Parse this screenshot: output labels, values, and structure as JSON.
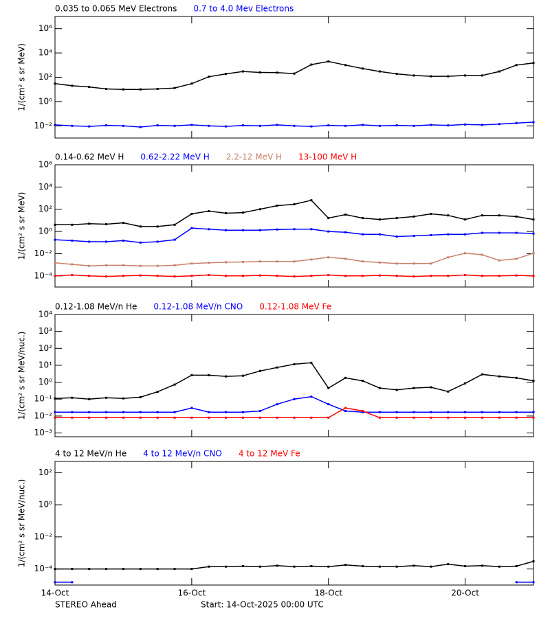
{
  "chart_data": [
    {
      "type": "line",
      "ylog": true,
      "ylabel": "1/(cm² s sr MeV)",
      "xlim": [
        0,
        7
      ],
      "xticks": [
        0,
        2,
        4,
        6
      ],
      "ylim": [
        0.001,
        10000000
      ],
      "yticks": [
        {
          "value": 0.01,
          "label": "10⁻²"
        },
        {
          "value": 1,
          "label": "10⁰"
        },
        {
          "value": 100,
          "label": "10²"
        },
        {
          "value": 10000,
          "label": "10⁴"
        },
        {
          "value": 1000000,
          "label": "10⁶"
        }
      ],
      "x": [
        0,
        0.25,
        0.5,
        0.75,
        1,
        1.25,
        1.5,
        1.75,
        2,
        2.25,
        2.5,
        2.75,
        3,
        3.25,
        3.5,
        3.75,
        4,
        4.25,
        4.5,
        4.75,
        5,
        5.25,
        5.5,
        5.75,
        6,
        6.25,
        6.5,
        6.75,
        7
      ],
      "series": [
        {
          "name": "0.035 to 0.065 MeV Electrons",
          "color": "#000000",
          "values": [
            30,
            20,
            16,
            11,
            10,
            10,
            11,
            13,
            30,
            110,
            190,
            300,
            250,
            240,
            200,
            1100,
            2000,
            1000,
            520,
            300,
            190,
            140,
            120,
            120,
            140,
            140,
            300,
            1000,
            1500
          ]
        },
        {
          "name": "0.7 to 4.0 Mev Electrons",
          "color": "#0000ff",
          "values": [
            0.012,
            0.01,
            0.009,
            0.011,
            0.01,
            0.008,
            0.011,
            0.01,
            0.012,
            0.01,
            0.009,
            0.011,
            0.01,
            0.012,
            0.01,
            0.009,
            0.011,
            0.01,
            0.012,
            0.01,
            0.011,
            0.01,
            0.012,
            0.011,
            0.013,
            0.012,
            0.014,
            0.017,
            0.02
          ]
        }
      ]
    },
    {
      "type": "line",
      "ylog": true,
      "ylabel": "1/(cm² s sr MeV)",
      "xlim": [
        0,
        7
      ],
      "xticks": [
        0,
        2,
        4,
        6
      ],
      "ylim": [
        1e-05,
        1000000
      ],
      "yticks": [
        {
          "value": 0.0001,
          "label": "10⁻⁴"
        },
        {
          "value": 0.01,
          "label": "10⁻²"
        },
        {
          "value": 1,
          "label": "10⁰"
        },
        {
          "value": 100,
          "label": "10²"
        },
        {
          "value": 10000,
          "label": "10⁴"
        },
        {
          "value": 1000000,
          "label": "10⁶"
        }
      ],
      "x": [
        0,
        0.25,
        0.5,
        0.75,
        1,
        1.25,
        1.5,
        1.75,
        2,
        2.25,
        2.5,
        2.75,
        3,
        3.25,
        3.5,
        3.75,
        4,
        4.25,
        4.5,
        4.75,
        5,
        5.25,
        5.5,
        5.75,
        6,
        6.25,
        6.5,
        6.75,
        7
      ],
      "series": [
        {
          "name": "0.14-0.62 MeV H",
          "color": "#000000",
          "values": [
            4,
            4,
            5,
            4.5,
            6,
            2.8,
            2.8,
            4,
            38,
            68,
            44,
            50,
            100,
            210,
            280,
            640,
            16,
            33,
            16,
            12,
            16,
            22,
            38,
            28,
            12,
            28,
            28,
            22,
            12
          ]
        },
        {
          "name": "0.62-2.22 MeV H",
          "color": "#0000ff",
          "values": [
            0.18,
            0.15,
            0.12,
            0.12,
            0.15,
            0.1,
            0.12,
            0.18,
            2,
            1.6,
            1.3,
            1.3,
            1.3,
            1.5,
            1.6,
            1.6,
            1,
            0.85,
            0.55,
            0.55,
            0.35,
            0.4,
            0.47,
            0.55,
            0.55,
            0.75,
            0.75,
            0.75,
            0.65
          ]
        },
        {
          "name": "2.2-12 MeV H",
          "color": "#c8806a",
          "values": [
            0.0015,
            0.0011,
            0.0008,
            0.0009,
            0.0009,
            0.0008,
            0.0008,
            0.0009,
            0.0013,
            0.0015,
            0.0017,
            0.0018,
            0.002,
            0.002,
            0.002,
            0.003,
            0.0047,
            0.0035,
            0.002,
            0.0016,
            0.0013,
            0.0013,
            0.0013,
            0.0047,
            0.011,
            0.008,
            0.0025,
            0.0035,
            0.011
          ]
        },
        {
          "name": "13-100 MeV H",
          "color": "#ff0000",
          "values": [
            0.0001,
            0.00012,
            0.0001,
            9e-05,
            0.0001,
            0.00011,
            0.0001,
            9e-05,
            0.0001,
            0.00012,
            0.0001,
            0.0001,
            0.00011,
            0.0001,
            9e-05,
            0.0001,
            0.00012,
            0.0001,
            0.0001,
            0.00011,
            0.0001,
            9e-05,
            0.0001,
            0.0001,
            0.00012,
            0.0001,
            0.0001,
            0.00011,
            0.0001
          ]
        }
      ]
    },
    {
      "type": "line",
      "ylog": true,
      "ylabel": "1/(cm² s sr MeV/nuc.)",
      "xlim": [
        0,
        7
      ],
      "xticks": [
        0,
        2,
        4,
        6
      ],
      "ylim": [
        0.0006,
        10000
      ],
      "yticks": [
        {
          "value": 0.001,
          "label": "10⁻³"
        },
        {
          "value": 0.01,
          "label": "10⁻²"
        },
        {
          "value": 0.1,
          "label": "10⁻¹"
        },
        {
          "value": 1,
          "label": "10⁰"
        },
        {
          "value": 10,
          "label": "10¹"
        },
        {
          "value": 100,
          "label": "10²"
        },
        {
          "value": 1000,
          "label": "10³"
        },
        {
          "value": 10000,
          "label": "10⁴"
        }
      ],
      "x": [
        0,
        0.25,
        0.5,
        0.75,
        1,
        1.25,
        1.5,
        1.75,
        2,
        2.25,
        2.5,
        2.75,
        3,
        3.25,
        3.5,
        3.75,
        4,
        4.25,
        4.5,
        4.75,
        5,
        5.25,
        5.5,
        5.75,
        6,
        6.25,
        6.5,
        6.75,
        7
      ],
      "series": [
        {
          "name": "0.12-1.08 MeV/n He",
          "color": "#000000",
          "values": [
            0.11,
            0.12,
            0.1,
            0.12,
            0.11,
            0.13,
            0.27,
            0.72,
            2.6,
            2.6,
            2.2,
            2.4,
            4.6,
            7.4,
            11.5,
            14,
            0.45,
            1.8,
            1.2,
            0.45,
            0.35,
            0.45,
            0.5,
            0.28,
            0.85,
            2.9,
            2.2,
            1.8,
            1.2
          ]
        },
        {
          "name": "0.12-1.08 MeV/n CNO",
          "color": "#0000ff",
          "values": [
            0.017,
            0.017,
            0.017,
            0.017,
            0.017,
            0.017,
            0.017,
            0.017,
            0.03,
            0.017,
            0.017,
            0.017,
            0.02,
            0.05,
            0.1,
            0.14,
            0.05,
            0.02,
            0.017,
            0.017,
            0.017,
            0.017,
            0.017,
            0.017,
            0.017,
            0.017,
            0.017,
            0.017,
            0.017
          ]
        },
        {
          "name": "0.12-1.08 MeV Fe",
          "color": "#ff0000",
          "values": [
            0.008,
            0.008,
            0.008,
            0.008,
            0.008,
            0.008,
            0.008,
            0.008,
            0.008,
            0.008,
            0.008,
            0.008,
            0.008,
            0.008,
            0.008,
            0.008,
            0.008,
            0.03,
            0.02,
            0.008,
            0.008,
            0.008,
            0.008,
            0.008,
            0.008,
            0.008,
            0.008,
            0.008,
            0.008
          ]
        }
      ]
    },
    {
      "type": "line",
      "ylog": true,
      "ylabel": "1/(cm² s sr MeV/nuc.)",
      "xlim": [
        0,
        7
      ],
      "xticks": [
        {
          "value": 0,
          "label": "14-Oct"
        },
        {
          "value": 2,
          "label": "16-Oct"
        },
        {
          "value": 4,
          "label": "18-Oct"
        },
        {
          "value": 6,
          "label": "20-Oct"
        }
      ],
      "ylim": [
        1e-05,
        500
      ],
      "yticks": [
        {
          "value": 0.0001,
          "label": "10⁻⁴"
        },
        {
          "value": 0.01,
          "label": "10⁻²"
        },
        {
          "value": 1,
          "label": "10⁰"
        },
        {
          "value": 100,
          "label": "10²"
        }
      ],
      "x": [
        0,
        0.25,
        0.5,
        0.75,
        1,
        1.25,
        1.5,
        1.75,
        2,
        2.25,
        2.5,
        2.75,
        3,
        3.25,
        3.5,
        3.75,
        4,
        4.25,
        4.5,
        4.75,
        5,
        5.25,
        5.5,
        5.75,
        6,
        6.25,
        6.5,
        6.75,
        7
      ],
      "series": [
        {
          "name": "4 to 12 MeV/n He",
          "color": "#000000",
          "values": [
            0.0001,
            0.0001,
            0.0001,
            0.0001,
            0.0001,
            0.0001,
            0.0001,
            0.0001,
            0.0001,
            0.00014,
            0.00014,
            0.00015,
            0.00014,
            0.00016,
            0.00014,
            0.00015,
            0.00014,
            0.00018,
            0.00015,
            0.00014,
            0.00014,
            0.00016,
            0.00014,
            0.0002,
            0.00015,
            0.00016,
            0.00014,
            0.00015,
            0.0003
          ]
        },
        {
          "name": "4 to 12 MeV/n CNO",
          "color": "#0000ff",
          "values": [
            1.5e-05,
            1.5e-05,
            null,
            null,
            null,
            null,
            null,
            null,
            null,
            null,
            null,
            null,
            null,
            null,
            null,
            null,
            null,
            null,
            null,
            null,
            null,
            null,
            null,
            null,
            null,
            null,
            null,
            1.5e-05,
            1.5e-05
          ]
        },
        {
          "name": "4 to 12 MeV Fe",
          "color": "#ff0000",
          "values": [
            null,
            null,
            null,
            null,
            null,
            null,
            null,
            null,
            null,
            null,
            null,
            null,
            null,
            null,
            null,
            null,
            null,
            null,
            null,
            null,
            null,
            null,
            null,
            null,
            null,
            null,
            null,
            null,
            null
          ]
        }
      ]
    }
  ],
  "footer": {
    "spacecraft": "STEREO Ahead",
    "start": "Start: 14-Oct-2025 00:00 UTC"
  }
}
